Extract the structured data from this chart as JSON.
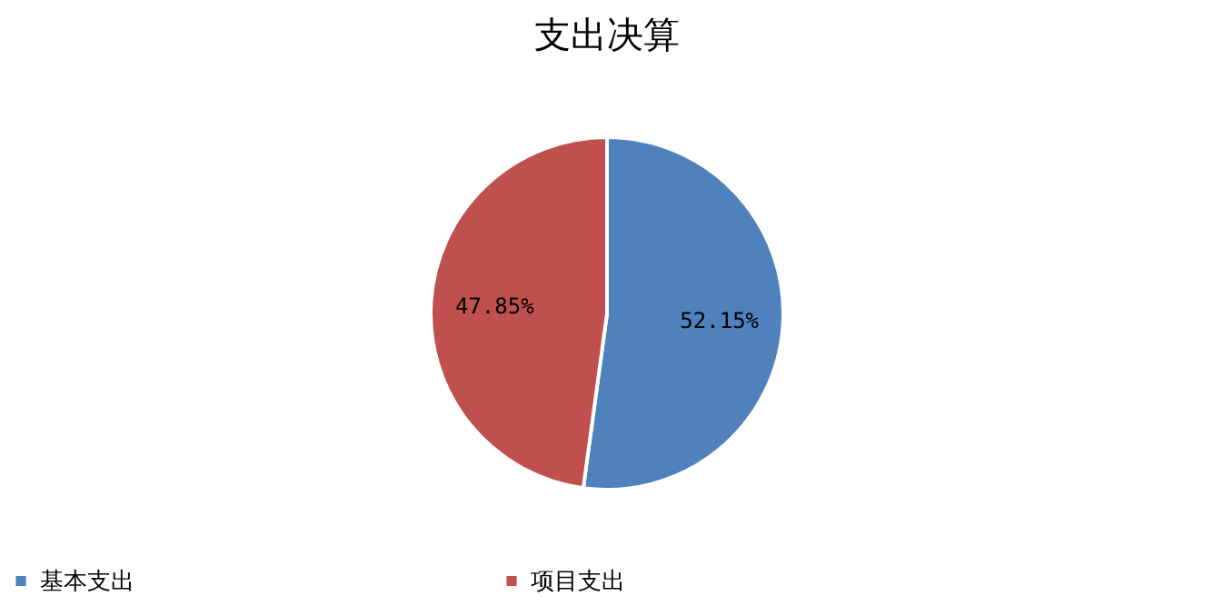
{
  "chart_data": {
    "type": "pie",
    "title": "支出决算",
    "categories": [
      "基本支出",
      "项目支出"
    ],
    "values": [
      52.15,
      47.85
    ],
    "colors": [
      "#4f81bd",
      "#c0504d"
    ],
    "value_labels": [
      "52.15%",
      "47.85%"
    ],
    "legend": "bottom"
  }
}
